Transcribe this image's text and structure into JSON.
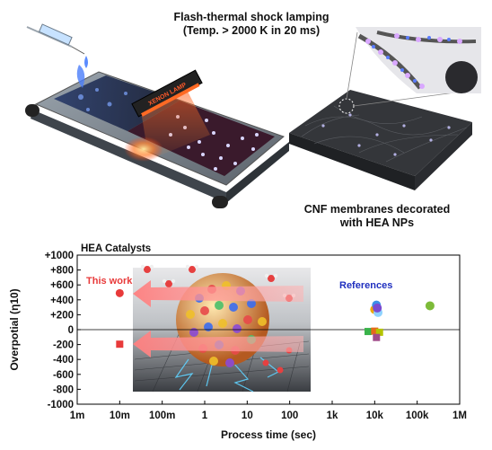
{
  "top": {
    "process_caption_line1": "Flash-thermal shock lamping",
    "process_caption_line2": "(Temp. > 2000 K in 20 ms)",
    "lamp_label": "XENON LAMP",
    "membrane_caption_line1": "CNF membranes decorated",
    "membrane_caption_line2": "with HEA NPs"
  },
  "chart_data": {
    "type": "scatter",
    "title": "HEA Catalysts",
    "xlabel": "Process time (sec)",
    "ylabel": "Overpotial (η10)",
    "xscale": "log",
    "xlim": [
      0.001,
      1000000
    ],
    "ylim": [
      -1000,
      1000
    ],
    "x_ticks": [
      "1m",
      "10m",
      "100m",
      "1",
      "10",
      "100",
      "1k",
      "10k",
      "100k",
      "1M"
    ],
    "y_ticks": [
      "+1000",
      "+800",
      "+600",
      "+400",
      "+200",
      "0",
      "-200",
      "-400",
      "-600",
      "-800",
      "-1000"
    ],
    "annotations": {
      "this_work": "This work",
      "references": "References"
    },
    "colors": {
      "this_work": "#e83a3a",
      "references": "#1f2fbf"
    },
    "series": [
      {
        "name": "This work",
        "markers": [
          "circle",
          "square"
        ],
        "x": [
          0.01,
          0.01
        ],
        "y": [
          490,
          -195
        ],
        "colors": [
          "#e83a3a",
          "#e83a3a"
        ]
      },
      {
        "name": "References",
        "markers": [
          "circle",
          "circle",
          "circle",
          "circle",
          "circle",
          "square",
          "square",
          "square",
          "square"
        ],
        "x": [
          10000,
          11000,
          12000,
          11500,
          200000,
          7000,
          10000,
          13000,
          11000
        ],
        "y": [
          270,
          330,
          230,
          290,
          320,
          -25,
          -20,
          -35,
          -105
        ],
        "colors": [
          "#f0a800",
          "#3d8fe8",
          "#8fd3ff",
          "#7a4ad0",
          "#7dbb39",
          "#39b34a",
          "#e66a1a",
          "#b4c400",
          "#a04b8a"
        ]
      }
    ]
  }
}
